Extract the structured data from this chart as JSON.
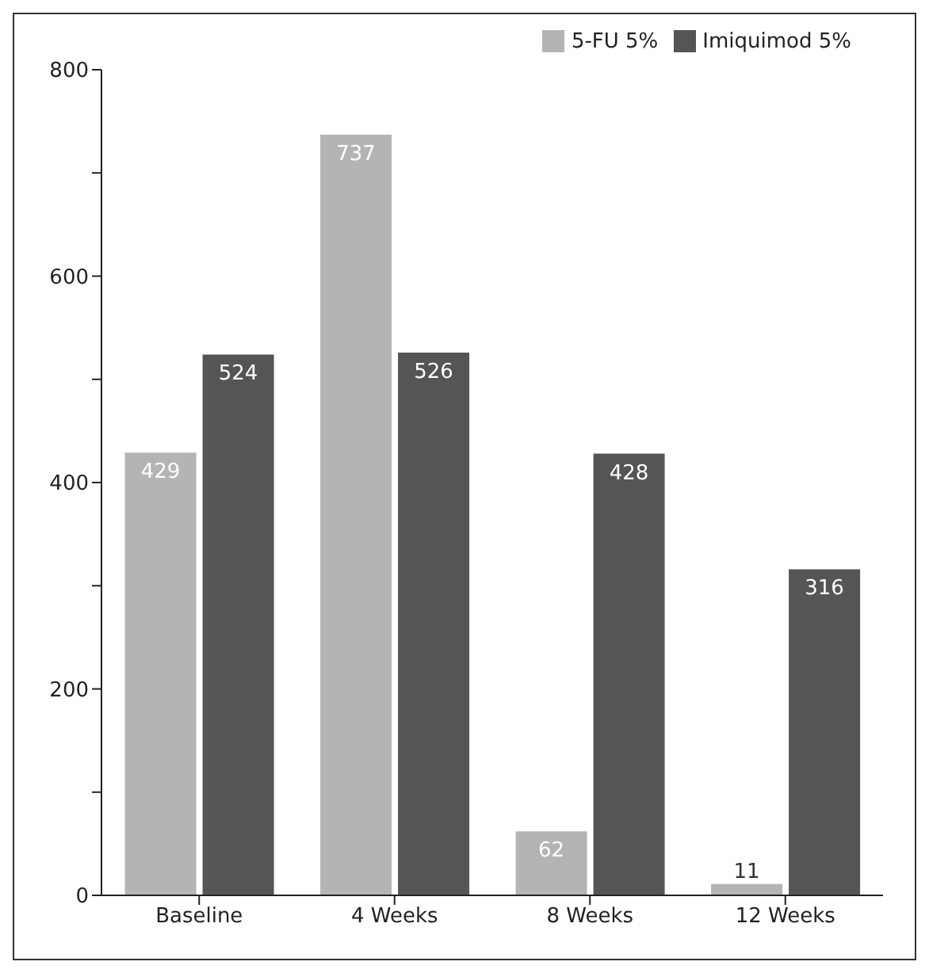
{
  "chart_data": {
    "type": "bar",
    "categories": [
      "Baseline",
      "4 Weeks",
      "8 Weeks",
      "12 Weeks"
    ],
    "series": [
      {
        "name": "5-FU 5%",
        "color": "#b4b4b4",
        "values": [
          429,
          737,
          62,
          11
        ]
      },
      {
        "name": "Imiquimod 5%",
        "color": "#555555",
        "values": [
          524,
          526,
          428,
          316
        ]
      }
    ],
    "ylim": [
      0,
      800
    ],
    "yticks": [
      0,
      {
        "value": 100,
        "label": null
      },
      200,
      {
        "value": 300,
        "label": null
      },
      400,
      {
        "value": 500,
        "label": null
      },
      600,
      {
        "value": 700,
        "label": null
      },
      800
    ],
    "data_labels": true,
    "legend": "top right",
    "grid": false
  }
}
